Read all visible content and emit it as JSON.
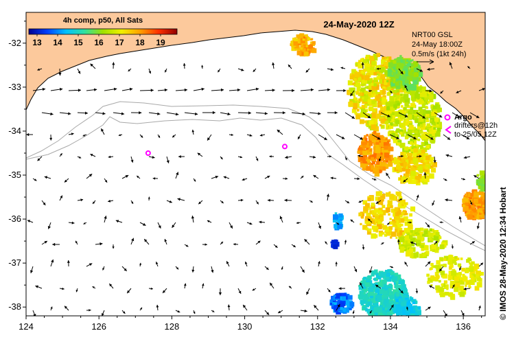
{
  "title": "24-May-2020 12Z",
  "colorbar": {
    "title": "4h comp, p50, All Sats",
    "ticks": [
      "13",
      "14",
      "15",
      "16",
      "17",
      "18",
      "19"
    ],
    "tick_values": [
      13,
      14,
      15,
      16,
      17,
      18,
      19
    ],
    "range": [
      12.6,
      19.8
    ],
    "stops": [
      "#000090",
      "#0040ff",
      "#00c0ff",
      "#30e0a0",
      "#a0e000",
      "#f0f000",
      "#ffa000",
      "#ff3000",
      "#900000"
    ]
  },
  "current_legend": {
    "model": "NRT00 GSL",
    "time": "24-May 18:00Z",
    "scale": "0.5m/s (1kt 24h)"
  },
  "argo_legend": {
    "label": "Argo",
    "drifters_line1": "drifters@12h",
    "drifters_line2": "to 25/05 12Z"
  },
  "credit": "© IMOS 28-May-2020 12:34 Hobart",
  "axes": {
    "x_ticks": [
      "124",
      "126",
      "128",
      "130",
      "132",
      "134",
      "136"
    ],
    "x_values": [
      124,
      126,
      128,
      130,
      132,
      134,
      136
    ],
    "y_ticks": [
      "-32",
      "-33",
      "-34",
      "-35",
      "-36",
      "-37",
      "-38"
    ],
    "y_values": [
      -32,
      -33,
      -34,
      -35,
      -36,
      -37,
      -38
    ],
    "lon_range": [
      124,
      136.6
    ],
    "lat_range": [
      -31.3,
      -38.2
    ]
  },
  "argo_floats": [
    {
      "lon": 131.1,
      "lat": -34.35
    },
    {
      "lon": 127.35,
      "lat": -34.5
    }
  ],
  "colors": {
    "land": "#fcc99c",
    "ocean": "#ffffff",
    "bathymetry": "#a8a8a8",
    "argo": "#ff00ff",
    "arrow": "#000000"
  }
}
